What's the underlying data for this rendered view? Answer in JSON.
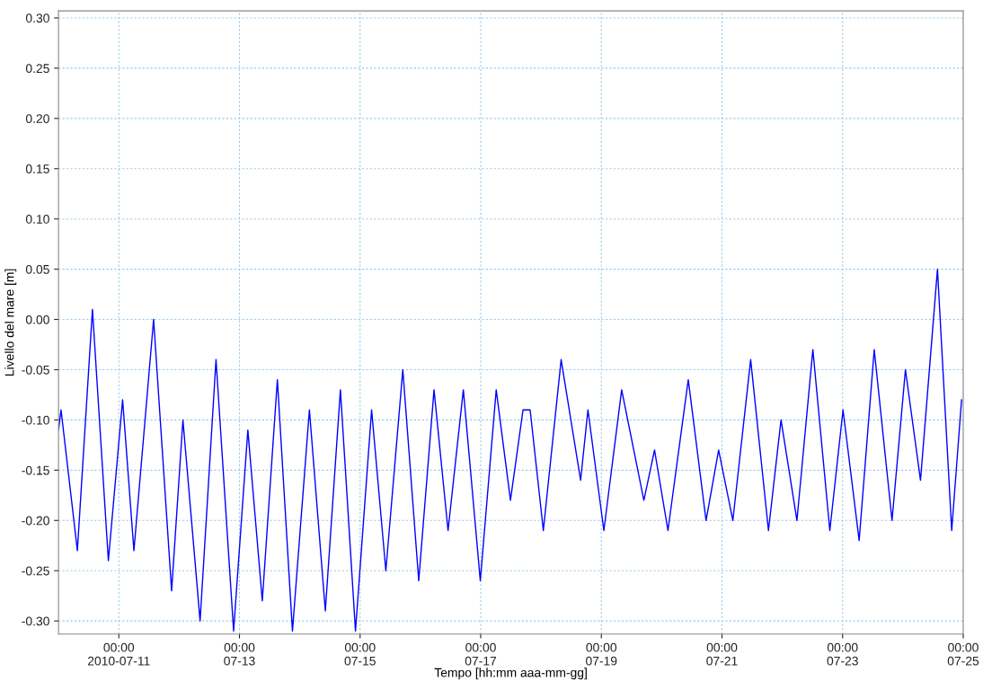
{
  "chart_data": {
    "type": "line",
    "xlabel": "Tempo [hh:mm aaa-mm-gg]",
    "ylabel": "Livello del mare [m]",
    "x": [
      "2010-07-10T00:00",
      "2010-07-10T01:00",
      "2010-07-10T07:30",
      "2010-07-10T13:30",
      "2010-07-10T19:50",
      "2010-07-11T01:30",
      "2010-07-11T06:00",
      "2010-07-11T13:50",
      "2010-07-11T21:00",
      "2010-07-12T01:30",
      "2010-07-12T08:20",
      "2010-07-12T14:40",
      "2010-07-12T21:40",
      "2010-07-13T03:20",
      "2010-07-13T09:05",
      "2010-07-13T15:05",
      "2010-07-13T21:05",
      "2010-07-14T03:50",
      "2010-07-14T10:10",
      "2010-07-14T16:10",
      "2010-07-14T22:10",
      "2010-07-15T04:35",
      "2010-07-15T10:15",
      "2010-07-15T17:00",
      "2010-07-15T23:20",
      "2010-07-16T05:25",
      "2010-07-16T11:00",
      "2010-07-16T17:05",
      "2010-07-16T23:50",
      "2010-07-17T06:10",
      "2010-07-17T11:50",
      "2010-07-17T16:50",
      "2010-07-17T19:40",
      "2010-07-18T00:55",
      "2010-07-18T08:00",
      "2010-07-18T15:45",
      "2010-07-18T18:40",
      "2010-07-19T01:00",
      "2010-07-19T08:05",
      "2010-07-19T16:55",
      "2010-07-19T21:10",
      "2010-07-20T02:30",
      "2010-07-20T10:35",
      "2010-07-20T17:40",
      "2010-07-20T22:40",
      "2010-07-21T04:20",
      "2010-07-21T11:25",
      "2010-07-21T18:30",
      "2010-07-21T23:30",
      "2010-07-22T05:50",
      "2010-07-22T12:10",
      "2010-07-22T18:55",
      "2010-07-23T00:10",
      "2010-07-23T06:35",
      "2010-07-23T12:35",
      "2010-07-23T19:40",
      "2010-07-24T01:00",
      "2010-07-24T07:00",
      "2010-07-24T13:45",
      "2010-07-24T19:25",
      "2010-07-24T23:20"
    ],
    "series": [
      {
        "color": "#0000ff",
        "values": [
          -0.11,
          -0.09,
          -0.23,
          0.01,
          -0.24,
          -0.08,
          -0.23,
          0.0,
          -0.27,
          -0.1,
          -0.3,
          -0.04,
          -0.31,
          -0.11,
          -0.28,
          -0.06,
          -0.31,
          -0.09,
          -0.29,
          -0.07,
          -0.31,
          -0.09,
          -0.25,
          -0.05,
          -0.26,
          -0.07,
          -0.21,
          -0.07,
          -0.26,
          -0.07,
          -0.18,
          -0.09,
          -0.09,
          -0.21,
          -0.04,
          -0.16,
          -0.09,
          -0.21,
          -0.07,
          -0.18,
          -0.13,
          -0.21,
          -0.06,
          -0.2,
          -0.13,
          -0.2,
          -0.04,
          -0.21,
          -0.1,
          -0.2,
          -0.03,
          -0.21,
          -0.09,
          -0.22,
          -0.03,
          -0.2,
          -0.05,
          -0.16,
          0.05,
          -0.21,
          -0.08
        ]
      }
    ],
    "xlim": [
      "2010-07-10T00:00",
      "2010-07-25T00:00"
    ],
    "xticks": [
      {
        "value": "2010-07-11T00:00",
        "label": "00:00\n2010-07-11"
      },
      {
        "value": "2010-07-13T00:00",
        "label": "00:00\n07-13"
      },
      {
        "value": "2010-07-15T00:00",
        "label": "00:00\n07-15"
      },
      {
        "value": "2010-07-17T00:00",
        "label": "00:00\n07-17"
      },
      {
        "value": "2010-07-19T00:00",
        "label": "00:00\n07-19"
      },
      {
        "value": "2010-07-21T00:00",
        "label": "00:00\n07-21"
      },
      {
        "value": "2010-07-23T00:00",
        "label": "00:00\n07-23"
      },
      {
        "value": "2010-07-25T00:00",
        "label": "00:00\n07-25"
      }
    ],
    "ylim": [
      -0.313,
      0.307
    ],
    "yticks": [
      {
        "value": -0.3,
        "label": "-0.30"
      },
      {
        "value": -0.25,
        "label": "-0.25"
      },
      {
        "value": -0.2,
        "label": "-0.20"
      },
      {
        "value": -0.15,
        "label": "-0.15"
      },
      {
        "value": -0.1,
        "label": "-0.10"
      },
      {
        "value": -0.05,
        "label": "-0.05"
      },
      {
        "value": 0.0,
        "label": "0.00"
      },
      {
        "value": 0.05,
        "label": "0.05"
      },
      {
        "value": 0.1,
        "label": "0.10"
      },
      {
        "value": 0.15,
        "label": "0.15"
      },
      {
        "value": 0.2,
        "label": "0.20"
      },
      {
        "value": 0.25,
        "label": "0.25"
      },
      {
        "value": 0.3,
        "label": "0.30"
      }
    ],
    "grid": true,
    "marker": "none",
    "line_style": "solid"
  }
}
